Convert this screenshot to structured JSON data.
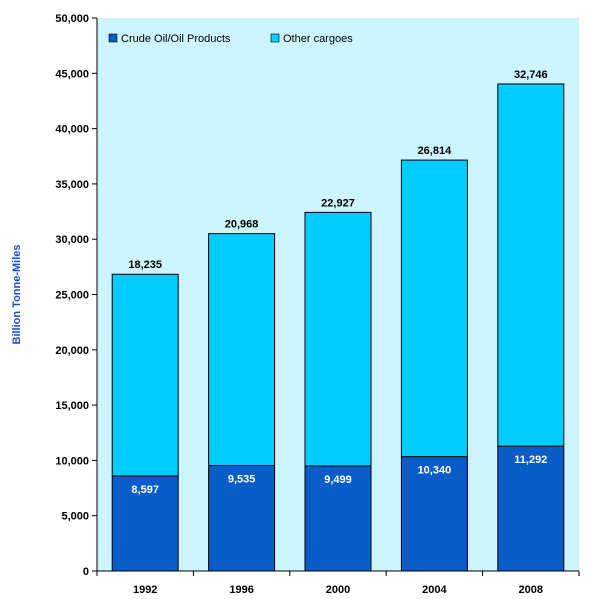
{
  "colors": {
    "plot_background": "#ccf5ff",
    "crude": "#0a5cc8",
    "other": "#00ccff",
    "axis_label": "#1a4fc4"
  },
  "chart_data": {
    "type": "bar",
    "stacked": true,
    "categories": [
      "1992",
      "1996",
      "2000",
      "2004",
      "2008"
    ],
    "series": [
      {
        "name": "Crude Oil/Oil Products",
        "values": [
          8597,
          9535,
          9499,
          10340,
          11292
        ]
      },
      {
        "name": "Other cargoes",
        "values": [
          18235,
          20968,
          22927,
          26814,
          32746
        ]
      }
    ],
    "data_labels": {
      "inside": [
        "8,597",
        "9,535",
        "9,499",
        "10,340",
        "11,292"
      ],
      "top": [
        "18,235",
        "20,968",
        "22,927",
        "26,814",
        "32,746"
      ]
    },
    "ylabel": "Billion Tonne-Miles",
    "xlabel": "",
    "ylim": [
      0,
      50000
    ],
    "yticks": [
      0,
      5000,
      10000,
      15000,
      20000,
      25000,
      30000,
      35000,
      40000,
      45000,
      50000
    ],
    "ytick_labels": [
      "0",
      "5,000",
      "10,000",
      "15,000",
      "20,000",
      "25,000",
      "30,000",
      "35,000",
      "40,000",
      "45,000",
      "50,000"
    ],
    "legend": "top-left",
    "grid": false
  }
}
